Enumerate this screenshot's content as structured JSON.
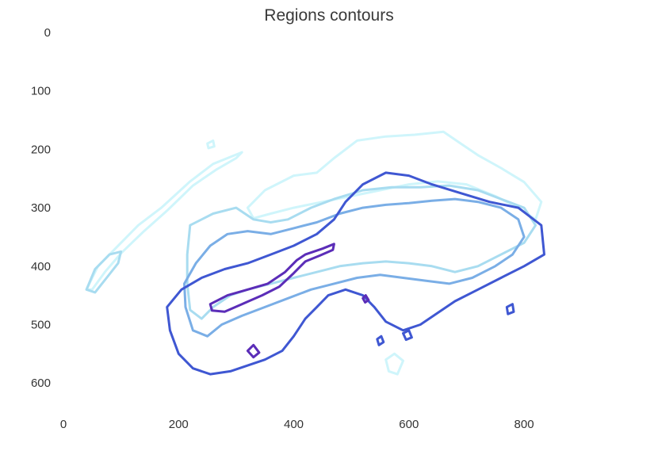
{
  "chart_data": {
    "type": "contour",
    "title": "Regions contours",
    "xlabel": "",
    "ylabel": "",
    "xlim": [
      0,
      950
    ],
    "ylim": [
      650,
      -15
    ],
    "y_inverted": true,
    "grid": false,
    "xticks": [
      0,
      200,
      400,
      600,
      800
    ],
    "yticks": [
      0,
      100,
      200,
      300,
      400,
      500,
      600
    ],
    "levels": [
      {
        "level": 1,
        "color": "#cff5fb"
      },
      {
        "level": 2,
        "color": "#a8dcf0"
      },
      {
        "level": 3,
        "color": "#7aaee6"
      },
      {
        "level": 4,
        "color": "#3f57d2"
      },
      {
        "level": 5,
        "color": "#5b2db8"
      }
    ],
    "contours": [
      {
        "level": 1,
        "points": [
          [
            40,
            440
          ],
          [
            60,
            400
          ],
          [
            90,
            370
          ],
          [
            130,
            330
          ],
          [
            170,
            300
          ],
          [
            220,
            255
          ],
          [
            260,
            225
          ],
          [
            310,
            205
          ],
          [
            300,
            215
          ],
          [
            265,
            235
          ],
          [
            225,
            262
          ],
          [
            180,
            305
          ],
          [
            140,
            340
          ],
          [
            100,
            378
          ],
          [
            72,
            410
          ],
          [
            50,
            440
          ]
        ]
      },
      {
        "level": 1,
        "points": [
          [
            320,
            300
          ],
          [
            350,
            270
          ],
          [
            400,
            245
          ],
          [
            440,
            240
          ],
          [
            470,
            215
          ],
          [
            510,
            185
          ],
          [
            560,
            178
          ],
          [
            610,
            175
          ],
          [
            660,
            170
          ],
          [
            690,
            190
          ],
          [
            720,
            210
          ],
          [
            760,
            232
          ],
          [
            800,
            256
          ],
          [
            830,
            290
          ],
          [
            820,
            320
          ],
          [
            790,
            300
          ],
          [
            750,
            280
          ],
          [
            700,
            260
          ],
          [
            650,
            255
          ],
          [
            600,
            260
          ],
          [
            550,
            270
          ],
          [
            500,
            280
          ],
          [
            450,
            290
          ],
          [
            400,
            300
          ],
          [
            360,
            310
          ],
          [
            330,
            318
          ]
        ]
      },
      {
        "level": 1,
        "points": [
          [
            560,
            560
          ],
          [
            575,
            550
          ],
          [
            590,
            562
          ],
          [
            580,
            585
          ],
          [
            565,
            580
          ]
        ]
      },
      {
        "level": 1,
        "points": [
          [
            250,
            190
          ],
          [
            260,
            185
          ],
          [
            262,
            195
          ],
          [
            252,
            198
          ]
        ]
      },
      {
        "level": 2,
        "points": [
          [
            40,
            440
          ],
          [
            55,
            405
          ],
          [
            80,
            380
          ],
          [
            100,
            375
          ],
          [
            95,
            395
          ],
          [
            75,
            420
          ],
          [
            55,
            445
          ]
        ]
      },
      {
        "level": 2,
        "points": [
          [
            220,
            330
          ],
          [
            260,
            310
          ],
          [
            300,
            300
          ],
          [
            330,
            320
          ],
          [
            360,
            325
          ],
          [
            390,
            320
          ],
          [
            430,
            300
          ],
          [
            470,
            285
          ],
          [
            520,
            270
          ],
          [
            570,
            265
          ],
          [
            620,
            265
          ],
          [
            670,
            262
          ],
          [
            720,
            270
          ],
          [
            760,
            285
          ],
          [
            800,
            300
          ],
          [
            820,
            330
          ],
          [
            800,
            360
          ],
          [
            760,
            380
          ],
          [
            720,
            400
          ],
          [
            680,
            410
          ],
          [
            640,
            400
          ],
          [
            600,
            395
          ],
          [
            560,
            392
          ],
          [
            520,
            395
          ],
          [
            480,
            400
          ],
          [
            440,
            410
          ],
          [
            400,
            420
          ],
          [
            360,
            430
          ],
          [
            320,
            440
          ],
          [
            290,
            450
          ],
          [
            260,
            470
          ],
          [
            240,
            490
          ],
          [
            220,
            475
          ],
          [
            215,
            430
          ],
          [
            215,
            380
          ]
        ]
      },
      {
        "level": 3,
        "points": [
          [
            210,
            430
          ],
          [
            230,
            395
          ],
          [
            255,
            365
          ],
          [
            285,
            345
          ],
          [
            320,
            340
          ],
          [
            360,
            345
          ],
          [
            400,
            335
          ],
          [
            440,
            325
          ],
          [
            480,
            310
          ],
          [
            520,
            300
          ],
          [
            560,
            295
          ],
          [
            600,
            292
          ],
          [
            640,
            288
          ],
          [
            680,
            285
          ],
          [
            720,
            290
          ],
          [
            760,
            300
          ],
          [
            790,
            320
          ],
          [
            800,
            350
          ],
          [
            780,
            380
          ],
          [
            750,
            400
          ],
          [
            710,
            420
          ],
          [
            670,
            430
          ],
          [
            630,
            425
          ],
          [
            590,
            420
          ],
          [
            550,
            415
          ],
          [
            510,
            420
          ],
          [
            470,
            430
          ],
          [
            430,
            440
          ],
          [
            390,
            455
          ],
          [
            350,
            470
          ],
          [
            310,
            485
          ],
          [
            275,
            500
          ],
          [
            250,
            520
          ],
          [
            225,
            510
          ],
          [
            212,
            470
          ]
        ]
      },
      {
        "level": 4,
        "points": [
          [
            180,
            470
          ],
          [
            205,
            440
          ],
          [
            240,
            420
          ],
          [
            280,
            405
          ],
          [
            320,
            395
          ],
          [
            360,
            380
          ],
          [
            400,
            365
          ],
          [
            440,
            345
          ],
          [
            470,
            320
          ],
          [
            490,
            290
          ],
          [
            520,
            260
          ],
          [
            560,
            240
          ],
          [
            600,
            245
          ],
          [
            640,
            260
          ],
          [
            690,
            275
          ],
          [
            740,
            290
          ],
          [
            790,
            300
          ],
          [
            830,
            330
          ],
          [
            835,
            380
          ],
          [
            800,
            400
          ],
          [
            760,
            420
          ],
          [
            720,
            440
          ],
          [
            680,
            460
          ],
          [
            650,
            480
          ],
          [
            620,
            500
          ],
          [
            590,
            510
          ],
          [
            560,
            495
          ],
          [
            540,
            470
          ],
          [
            520,
            450
          ],
          [
            490,
            440
          ],
          [
            460,
            450
          ],
          [
            440,
            470
          ],
          [
            420,
            490
          ],
          [
            400,
            520
          ],
          [
            380,
            545
          ],
          [
            350,
            560
          ],
          [
            320,
            570
          ],
          [
            290,
            580
          ],
          [
            255,
            585
          ],
          [
            225,
            575
          ],
          [
            200,
            550
          ],
          [
            185,
            510
          ]
        ]
      },
      {
        "level": 4,
        "points": [
          [
            545,
            525
          ],
          [
            552,
            520
          ],
          [
            556,
            530
          ],
          [
            548,
            535
          ]
        ]
      },
      {
        "level": 4,
        "points": [
          [
            590,
            515
          ],
          [
            600,
            510
          ],
          [
            605,
            522
          ],
          [
            595,
            526
          ]
        ]
      },
      {
        "level": 4,
        "points": [
          [
            770,
            470
          ],
          [
            780,
            465
          ],
          [
            782,
            478
          ],
          [
            772,
            482
          ]
        ]
      },
      {
        "level": 5,
        "points": [
          [
            255,
            465
          ],
          [
            285,
            450
          ],
          [
            320,
            440
          ],
          [
            355,
            430
          ],
          [
            385,
            410
          ],
          [
            405,
            390
          ],
          [
            420,
            380
          ],
          [
            450,
            370
          ],
          [
            470,
            362
          ],
          [
            468,
            372
          ],
          [
            445,
            382
          ],
          [
            420,
            392
          ],
          [
            400,
            412
          ],
          [
            375,
            435
          ],
          [
            345,
            450
          ],
          [
            310,
            465
          ],
          [
            280,
            478
          ],
          [
            258,
            476
          ]
        ]
      },
      {
        "level": 5,
        "points": [
          [
            520,
            455
          ],
          [
            525,
            450
          ],
          [
            530,
            458
          ],
          [
            524,
            462
          ]
        ]
      },
      {
        "level": 5,
        "points": [
          [
            320,
            545
          ],
          [
            330,
            535
          ],
          [
            340,
            548
          ],
          [
            330,
            556
          ]
        ]
      }
    ]
  }
}
